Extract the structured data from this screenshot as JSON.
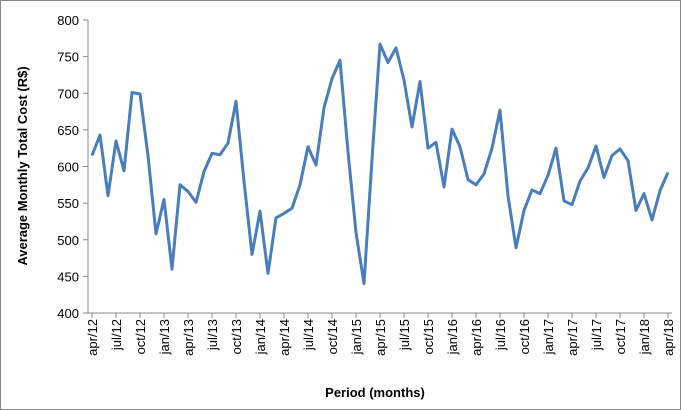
{
  "chart_data": {
    "type": "line",
    "x_label": "Period (months)",
    "y_label": "Average Monthly Total Cost (R$)",
    "categories": [
      "apr/12",
      null,
      null,
      "jul/12",
      null,
      null,
      "oct/12",
      null,
      null,
      "jan/13",
      null,
      null,
      "apr/13",
      null,
      null,
      "jul/13",
      null,
      null,
      "oct/13",
      null,
      null,
      "jan/14",
      null,
      null,
      "apr/14",
      null,
      null,
      "jul/14",
      null,
      null,
      "oct/14",
      null,
      null,
      "jan/15",
      null,
      null,
      "apr/15",
      null,
      null,
      "jul/15",
      null,
      null,
      "oct/15",
      null,
      null,
      "jan/16",
      null,
      null,
      "apr/16",
      null,
      null,
      "jul/16",
      null,
      null,
      "oct/16",
      null,
      null,
      "jan/17",
      null,
      null,
      "apr/17",
      null,
      null,
      "jul/17",
      null,
      null,
      "oct/17",
      null,
      null,
      "jan/18",
      null,
      null,
      "apr/18"
    ],
    "series": [
      {
        "color": "#4a7ebb",
        "values": [
          615,
          643,
          560,
          635,
          594,
          701,
          699,
          615,
          508,
          555,
          460,
          575,
          566,
          551,
          593,
          618,
          616,
          632,
          689,
          580,
          480,
          539,
          454,
          530,
          536,
          543,
          575,
          627,
          602,
          680,
          720,
          745,
          620,
          510,
          440,
          610,
          767,
          742,
          762,
          718,
          654,
          716,
          625,
          633,
          572,
          651,
          627,
          582,
          575,
          590,
          625,
          677,
          560,
          489,
          540,
          568,
          563,
          588,
          625,
          553,
          548,
          580,
          598,
          628,
          585,
          615,
          624,
          608,
          540,
          563,
          527,
          567,
          592
        ]
      }
    ],
    "ylim": [
      400,
      800
    ],
    "yticks": [
      400,
      450,
      500,
      550,
      600,
      650,
      700,
      750,
      800
    ],
    "grid": false
  }
}
